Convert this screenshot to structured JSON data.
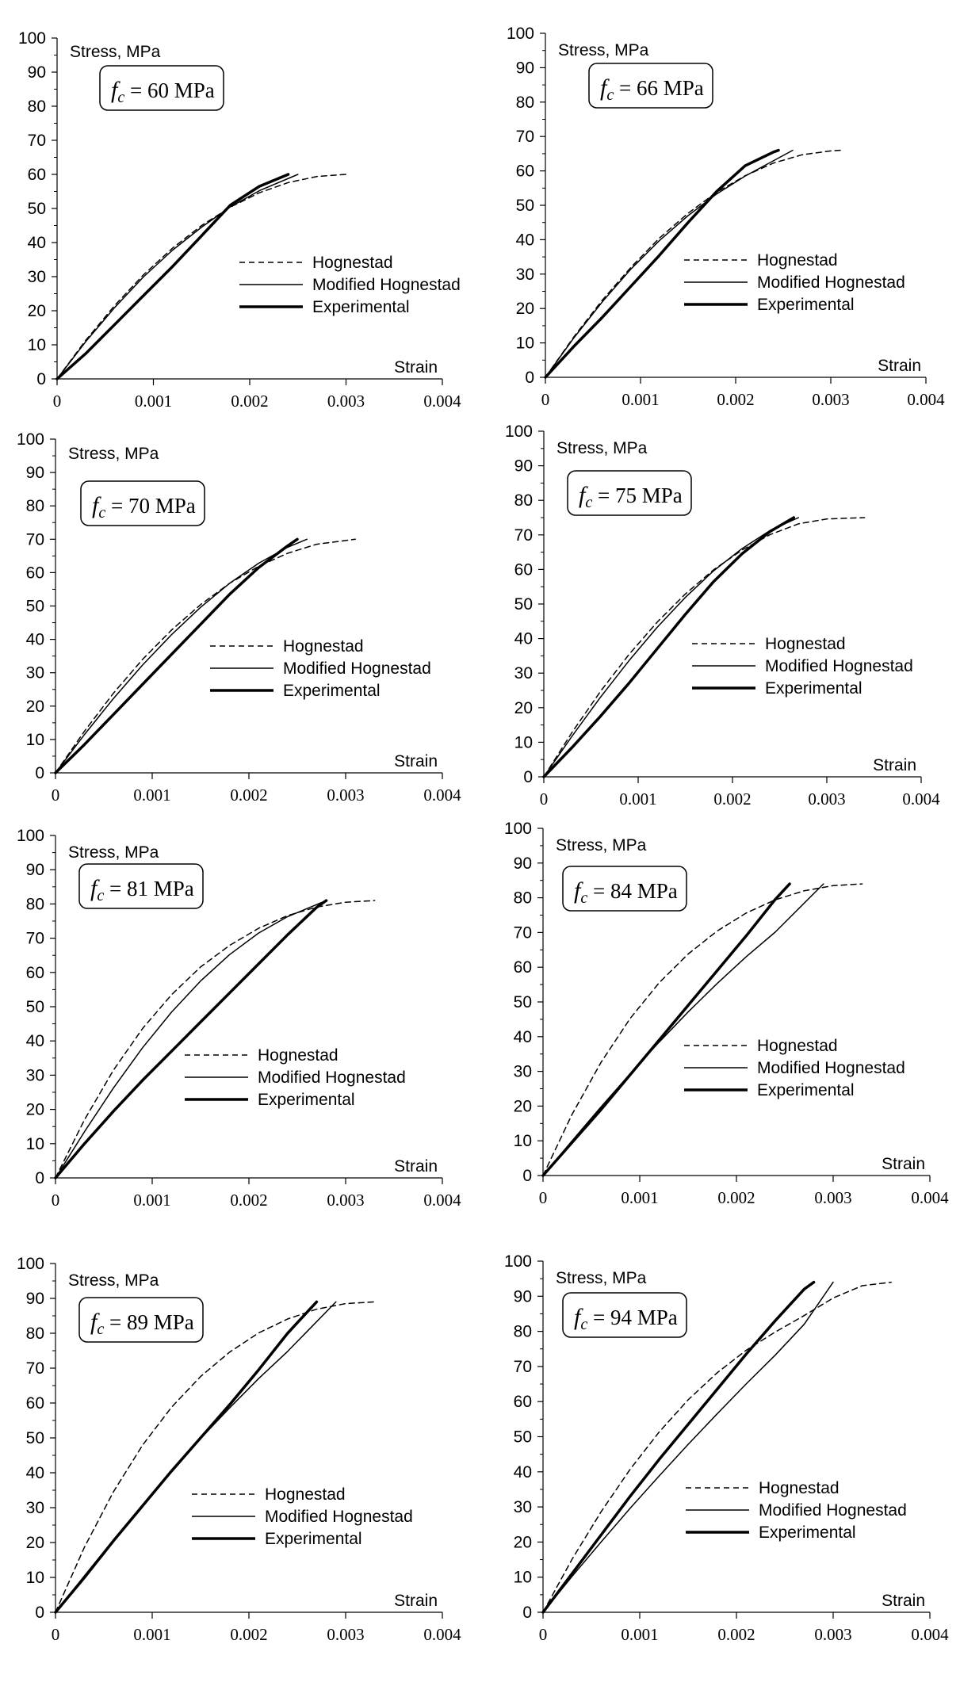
{
  "chart_data": [
    {
      "type": "line",
      "title": "f_c = 60 MPa",
      "fc_value": "60",
      "fc_unit": "MPa",
      "xlabel": "Strain",
      "ylabel": "Stress, MPa",
      "xlim": [
        0,
        0.004
      ],
      "ylim": [
        0,
        100
      ],
      "xticks": [
        "0",
        "0.001",
        "0.002",
        "0.003",
        "0.004"
      ],
      "yticks": [
        "0",
        "10",
        "20",
        "30",
        "40",
        "50",
        "60",
        "70",
        "80",
        "90",
        "100"
      ],
      "legend": [
        "Hognestad",
        "Modified Hognestad",
        "Experimental"
      ],
      "series": [
        {
          "name": "Hognestad",
          "style": "dashed",
          "x": [
            0,
            0.0003,
            0.0006,
            0.0009,
            0.0012,
            0.0015,
            0.0018,
            0.0021,
            0.0024,
            0.0027,
            0.003
          ],
          "y": [
            0,
            11.4,
            21.6,
            30.6,
            38.4,
            45.0,
            50.4,
            54.6,
            57.6,
            59.4,
            60.0
          ]
        },
        {
          "name": "Modified Hognestad",
          "style": "thin",
          "x": [
            0,
            0.0003,
            0.0006,
            0.0009,
            0.0012,
            0.0015,
            0.0018,
            0.0021,
            0.0025
          ],
          "y": [
            0,
            11.0,
            21.0,
            30.0,
            37.8,
            44.5,
            50.5,
            55.2,
            60.0
          ]
        },
        {
          "name": "Experimental",
          "style": "thick",
          "x": [
            0,
            0.0003,
            0.0006,
            0.0009,
            0.0012,
            0.0015,
            0.0018,
            0.0021,
            0.0024
          ],
          "y": [
            0,
            7.5,
            16.0,
            24.5,
            33.0,
            42.0,
            51.0,
            56.5,
            60.0
          ]
        }
      ]
    },
    {
      "type": "line",
      "title": "f_c = 66 MPa",
      "fc_value": "66",
      "fc_unit": "MPa",
      "xlabel": "Strain",
      "ylabel": "Stress, MPa",
      "xlim": [
        0,
        0.004
      ],
      "ylim": [
        0,
        100
      ],
      "xticks": [
        "0",
        "0.001",
        "0.002",
        "0.003",
        "0.004"
      ],
      "yticks": [
        "0",
        "10",
        "20",
        "30",
        "40",
        "50",
        "60",
        "70",
        "80",
        "90",
        "100"
      ],
      "legend": [
        "Hognestad",
        "Modified Hognestad",
        "Experimental"
      ],
      "series": [
        {
          "name": "Hognestad",
          "style": "dashed",
          "x": [
            0,
            0.0003,
            0.0006,
            0.0009,
            0.0012,
            0.0015,
            0.0018,
            0.0021,
            0.0024,
            0.0027,
            0.003,
            0.0031
          ],
          "y": [
            0,
            11.8,
            22.5,
            32.0,
            40.5,
            47.7,
            53.8,
            58.6,
            62.3,
            64.7,
            65.8,
            66.0
          ]
        },
        {
          "name": "Modified Hognestad",
          "style": "thin",
          "x": [
            0,
            0.0003,
            0.0006,
            0.0009,
            0.0012,
            0.0015,
            0.0018,
            0.0021,
            0.0024,
            0.0026
          ],
          "y": [
            0,
            11.5,
            22.0,
            31.5,
            39.8,
            47.0,
            53.3,
            58.5,
            63.0,
            66.0
          ]
        },
        {
          "name": "Experimental",
          "style": "thick",
          "x": [
            0,
            0.0003,
            0.0006,
            0.0009,
            0.0012,
            0.0015,
            0.0018,
            0.0021,
            0.0024,
            0.00245
          ],
          "y": [
            0,
            9.0,
            17.5,
            26.5,
            35.5,
            45.0,
            54.0,
            61.5,
            65.5,
            66.0
          ]
        }
      ]
    },
    {
      "type": "line",
      "title": "f_c = 70 MPa",
      "fc_value": "70",
      "fc_unit": "MPa",
      "xlabel": "Strain",
      "ylabel": "Stress, MPa",
      "xlim": [
        0,
        0.004
      ],
      "ylim": [
        0,
        100
      ],
      "xticks": [
        "0",
        "0.001",
        "0.002",
        "0.003",
        "0.004"
      ],
      "yticks": [
        "0",
        "10",
        "20",
        "30",
        "40",
        "50",
        "60",
        "70",
        "80",
        "90",
        "100"
      ],
      "legend": [
        "Hognestad",
        "Modified Hognestad",
        "Experimental"
      ],
      "series": [
        {
          "name": "Hognestad",
          "style": "dashed",
          "x": [
            0,
            0.0003,
            0.0006,
            0.0009,
            0.0012,
            0.0015,
            0.0018,
            0.0021,
            0.0024,
            0.0027,
            0.0031
          ],
          "y": [
            0,
            12.5,
            23.9,
            34.0,
            42.8,
            50.4,
            56.8,
            61.9,
            65.8,
            68.5,
            70.0
          ]
        },
        {
          "name": "Modified Hognestad",
          "style": "thin",
          "x": [
            0,
            0.0003,
            0.0006,
            0.0009,
            0.0012,
            0.0015,
            0.0018,
            0.0021,
            0.0024,
            0.0026
          ],
          "y": [
            0,
            11.5,
            22.3,
            32.3,
            41.4,
            49.6,
            56.8,
            62.8,
            67.6,
            70.0
          ]
        },
        {
          "name": "Experimental",
          "style": "thick",
          "x": [
            0,
            0.0003,
            0.0006,
            0.0009,
            0.0012,
            0.0015,
            0.0018,
            0.0021,
            0.0024,
            0.0025
          ],
          "y": [
            0,
            8.5,
            17.5,
            26.5,
            35.5,
            44.5,
            53.5,
            61.5,
            68.0,
            70.0
          ]
        }
      ]
    },
    {
      "type": "line",
      "title": "f_c = 75 MPa",
      "fc_value": "75",
      "fc_unit": "MPa",
      "xlabel": "Strain",
      "ylabel": "Stress, MPa",
      "xlim": [
        0,
        0.004
      ],
      "ylim": [
        0,
        100
      ],
      "xticks": [
        "0",
        "0.001",
        "0.002",
        "0.003",
        "0.004"
      ],
      "yticks": [
        "0",
        "10",
        "20",
        "30",
        "40",
        "50",
        "60",
        "70",
        "80",
        "90",
        "100"
      ],
      "legend": [
        "Hognestad",
        "Modified Hognestad",
        "Experimental"
      ],
      "series": [
        {
          "name": "Hognestad",
          "style": "dashed",
          "x": [
            0,
            0.0003,
            0.0006,
            0.0009,
            0.0012,
            0.0015,
            0.0018,
            0.0021,
            0.0024,
            0.0027,
            0.003,
            0.0034
          ],
          "y": [
            0,
            12.9,
            24.7,
            35.3,
            44.7,
            52.9,
            59.9,
            65.6,
            70.1,
            73.2,
            74.6,
            75.0
          ]
        },
        {
          "name": "Modified Hognestad",
          "style": "thin",
          "x": [
            0,
            0.0003,
            0.0006,
            0.0009,
            0.0012,
            0.0015,
            0.0018,
            0.0021,
            0.0024,
            0.0027
          ],
          "y": [
            0,
            11.8,
            23.0,
            33.5,
            43.2,
            51.9,
            59.6,
            66.0,
            71.3,
            75.0
          ]
        },
        {
          "name": "Experimental",
          "style": "thick",
          "x": [
            0,
            0.0003,
            0.0006,
            0.0009,
            0.0012,
            0.0015,
            0.0018,
            0.0021,
            0.0024,
            0.00265
          ],
          "y": [
            0,
            8.5,
            17.5,
            27.0,
            37.0,
            47.0,
            56.5,
            64.5,
            71.0,
            75.0
          ]
        }
      ]
    },
    {
      "type": "line",
      "title": "f_c = 81 MPa",
      "fc_value": "81",
      "fc_unit": "MPa",
      "xlabel": "Strain",
      "ylabel": "Stress, MPa",
      "xlim": [
        0,
        0.004
      ],
      "ylim": [
        0,
        100
      ],
      "xticks": [
        "0",
        "0.001",
        "0.002",
        "0.003",
        "0.004"
      ],
      "yticks": [
        "0",
        "10",
        "20",
        "30",
        "40",
        "50",
        "60",
        "70",
        "80",
        "90",
        "100"
      ],
      "legend": [
        "Hognestad",
        "Modified Hognestad",
        "Experimental"
      ],
      "series": [
        {
          "name": "Hognestad",
          "style": "dashed",
          "x": [
            0,
            0.0003,
            0.0006,
            0.0009,
            0.0012,
            0.0015,
            0.0018,
            0.0021,
            0.0024,
            0.0027,
            0.003,
            0.0033
          ],
          "y": [
            0,
            17.0,
            31.5,
            43.6,
            53.5,
            61.6,
            67.9,
            72.9,
            76.6,
            79.1,
            80.5,
            81.0
          ]
        },
        {
          "name": "Modified Hognestad",
          "style": "thin",
          "x": [
            0,
            0.0003,
            0.0006,
            0.0009,
            0.0012,
            0.0015,
            0.0018,
            0.0021,
            0.0024,
            0.0028
          ],
          "y": [
            0,
            13.5,
            26.3,
            38.0,
            48.4,
            57.5,
            65.2,
            71.5,
            76.3,
            81.0
          ]
        },
        {
          "name": "Experimental",
          "style": "thick",
          "x": [
            0,
            0.0003,
            0.0006,
            0.0009,
            0.0012,
            0.0015,
            0.0018,
            0.0021,
            0.0024,
            0.0027,
            0.0028
          ],
          "y": [
            0,
            10.0,
            19.5,
            28.5,
            37.0,
            45.5,
            54.0,
            62.5,
            71.0,
            79.0,
            81.0
          ]
        }
      ]
    },
    {
      "type": "line",
      "title": "f_c = 84 MPa",
      "fc_value": "84",
      "fc_unit": "MPa",
      "xlabel": "Strain",
      "ylabel": "Stress, MPa",
      "xlim": [
        0,
        0.004
      ],
      "ylim": [
        0,
        100
      ],
      "xticks": [
        "0",
        "0.001",
        "0.002",
        "0.003",
        "0.004"
      ],
      "yticks": [
        "0",
        "10",
        "20",
        "30",
        "40",
        "50",
        "60",
        "70",
        "80",
        "90",
        "100"
      ],
      "legend": [
        "Hognestad",
        "Modified Hognestad",
        "Experimental"
      ],
      "series": [
        {
          "name": "Hognestad",
          "style": "dashed",
          "x": [
            0,
            0.0003,
            0.0006,
            0.0009,
            0.0012,
            0.0015,
            0.0018,
            0.0021,
            0.0024,
            0.0027,
            0.003,
            0.0033
          ],
          "y": [
            0,
            17.6,
            32.6,
            45.2,
            55.5,
            63.8,
            70.4,
            75.6,
            79.4,
            82.0,
            83.5,
            84.0
          ]
        },
        {
          "name": "Modified Hognestad",
          "style": "thin",
          "x": [
            0,
            0.0003,
            0.0006,
            0.0009,
            0.0012,
            0.0015,
            0.0018,
            0.0021,
            0.0024,
            0.0029
          ],
          "y": [
            0,
            10.0,
            19.8,
            29.3,
            38.4,
            47.1,
            55.3,
            63.0,
            70.1,
            84.0
          ]
        },
        {
          "name": "Experimental",
          "style": "thick",
          "x": [
            0,
            0.0003,
            0.0006,
            0.0009,
            0.0012,
            0.0015,
            0.0018,
            0.0021,
            0.0024,
            0.00255
          ],
          "y": [
            0,
            9.5,
            19.0,
            29.0,
            39.0,
            49.0,
            59.0,
            69.0,
            79.5,
            84.0
          ]
        }
      ]
    },
    {
      "type": "line",
      "title": "f_c = 89 MPa",
      "fc_value": "89",
      "fc_unit": "MPa",
      "xlabel": "Strain",
      "ylabel": "Stress, MPa",
      "xlim": [
        0,
        0.004
      ],
      "ylim": [
        0,
        100
      ],
      "xticks": [
        "0",
        "0.001",
        "0.002",
        "0.003",
        "0.004"
      ],
      "yticks": [
        "0",
        "10",
        "20",
        "30",
        "40",
        "50",
        "60",
        "70",
        "80",
        "90",
        "100"
      ],
      "legend": [
        "Hognestad",
        "Modified Hognestad",
        "Experimental"
      ],
      "series": [
        {
          "name": "Hognestad",
          "style": "dashed",
          "x": [
            0,
            0.0003,
            0.0006,
            0.0009,
            0.0012,
            0.0015,
            0.0018,
            0.0021,
            0.0024,
            0.0027,
            0.003,
            0.0033
          ],
          "y": [
            0,
            18.7,
            34.6,
            47.9,
            58.8,
            67.6,
            74.6,
            80.1,
            84.1,
            86.9,
            88.5,
            89.0
          ]
        },
        {
          "name": "Modified Hognestad",
          "style": "thin",
          "x": [
            0,
            0.0003,
            0.0006,
            0.0009,
            0.0012,
            0.0015,
            0.0018,
            0.0021,
            0.0024,
            0.0029
          ],
          "y": [
            0,
            10.5,
            20.8,
            30.8,
            40.5,
            49.8,
            58.6,
            67.0,
            74.8,
            89.0
          ]
        },
        {
          "name": "Experimental",
          "style": "thick",
          "x": [
            0,
            0.0003,
            0.0006,
            0.0009,
            0.0012,
            0.0015,
            0.0018,
            0.0021,
            0.0024,
            0.0027
          ],
          "y": [
            0,
            10.0,
            20.5,
            30.5,
            40.5,
            50.0,
            59.5,
            69.5,
            80.0,
            89.0
          ]
        }
      ]
    },
    {
      "type": "line",
      "title": "f_c = 94 MPa",
      "fc_value": "94",
      "fc_unit": "MPa",
      "xlabel": "Strain",
      "ylabel": "Stress, MPa",
      "xlim": [
        0,
        0.004
      ],
      "ylim": [
        0,
        100
      ],
      "xticks": [
        "0",
        "0.001",
        "0.002",
        "0.003",
        "0.004"
      ],
      "yticks": [
        "0",
        "10",
        "20",
        "30",
        "40",
        "50",
        "60",
        "70",
        "80",
        "90",
        "100"
      ],
      "legend": [
        "Hognestad",
        "Modified Hognestad",
        "Experimental"
      ],
      "series": [
        {
          "name": "Hognestad",
          "style": "dashed",
          "x": [
            0,
            0.0003,
            0.0006,
            0.0009,
            0.0012,
            0.0015,
            0.0018,
            0.0021,
            0.0024,
            0.0027,
            0.003,
            0.0033,
            0.0036
          ],
          "y": [
            0,
            15.1,
            28.6,
            40.7,
            51.3,
            60.5,
            68.2,
            74.6,
            79.8,
            84.5,
            89.5,
            93.0,
            94.0
          ]
        },
        {
          "name": "Modified Hognestad",
          "style": "thin",
          "x": [
            0,
            0.0003,
            0.0006,
            0.0009,
            0.0012,
            0.0015,
            0.0018,
            0.0021,
            0.0024,
            0.0027,
            0.003
          ],
          "y": [
            0,
            10.2,
            20.0,
            29.6,
            38.8,
            47.8,
            56.5,
            65.0,
            73.2,
            82.0,
            94.0
          ]
        },
        {
          "name": "Experimental",
          "style": "thick",
          "x": [
            0,
            0.0003,
            0.0006,
            0.0009,
            0.0012,
            0.0015,
            0.0018,
            0.0021,
            0.0024,
            0.0027,
            0.0028
          ],
          "y": [
            0,
            11.0,
            22.0,
            33.0,
            43.5,
            53.5,
            63.5,
            73.5,
            83.0,
            92.0,
            94.0
          ]
        }
      ]
    }
  ]
}
